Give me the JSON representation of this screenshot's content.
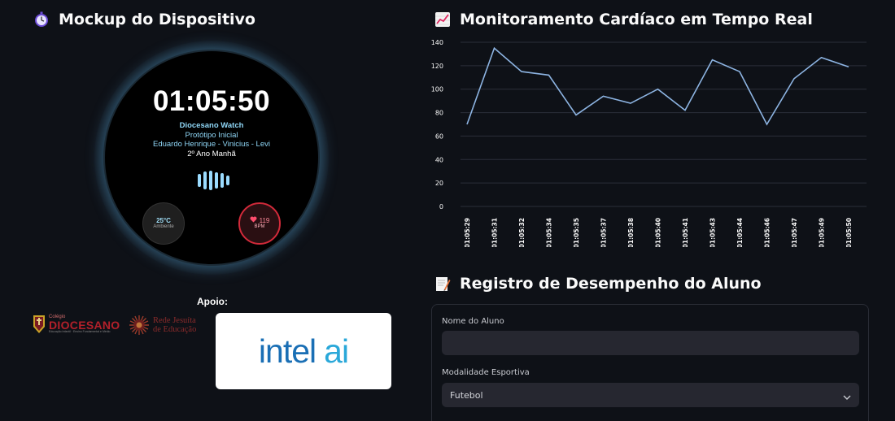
{
  "left_title": "Mockup do Dispositivo",
  "watch": {
    "time": "01:05:50",
    "brand": "Diocesano Watch",
    "lines": [
      "Protótipo Inicial",
      "Eduardo Henrique - Vinicius - Levi",
      "2º Ano Manhã"
    ],
    "temp_value": "25°C",
    "temp_label": "Ambiente",
    "bpm_value": "119",
    "bpm_label": "BPM"
  },
  "support_label": "Apoio:",
  "logos": {
    "colegio_small": "Colégio",
    "colegio_big": "DIOCESANO",
    "colegio_tiny": "Educação Infantil · Ensino Fundamental e Médio",
    "rede_line1": "Rede Jesuíta",
    "rede_line2": "de Educação",
    "intel_word": "intel",
    "ai_word": "ai"
  },
  "chart_title": "Monitoramento Cardíaco em Tempo Real",
  "chart_data": {
    "type": "line",
    "x": [
      "01:05:29",
      "01:05:31",
      "01:05:32",
      "01:05:34",
      "01:05:35",
      "01:05:37",
      "01:05:38",
      "01:05:40",
      "01:05:41",
      "01:05:43",
      "01:05:44",
      "01:05:46",
      "01:05:47",
      "01:05:49",
      "01:05:50"
    ],
    "values": [
      70,
      135,
      115,
      112,
      78,
      94,
      88,
      100,
      82,
      125,
      115,
      70,
      109,
      127,
      119
    ],
    "ylim": [
      0,
      140
    ],
    "yticks": [
      0,
      20,
      40,
      60,
      80,
      100,
      120,
      140
    ],
    "line_color": "#8db4e2",
    "grid": true
  },
  "form_title": "Registro de Desempenho do Aluno",
  "form": {
    "name_label": "Nome do Aluno",
    "name_value": "",
    "sport_label": "Modalidade Esportiva",
    "sport_value": "Futebol"
  }
}
